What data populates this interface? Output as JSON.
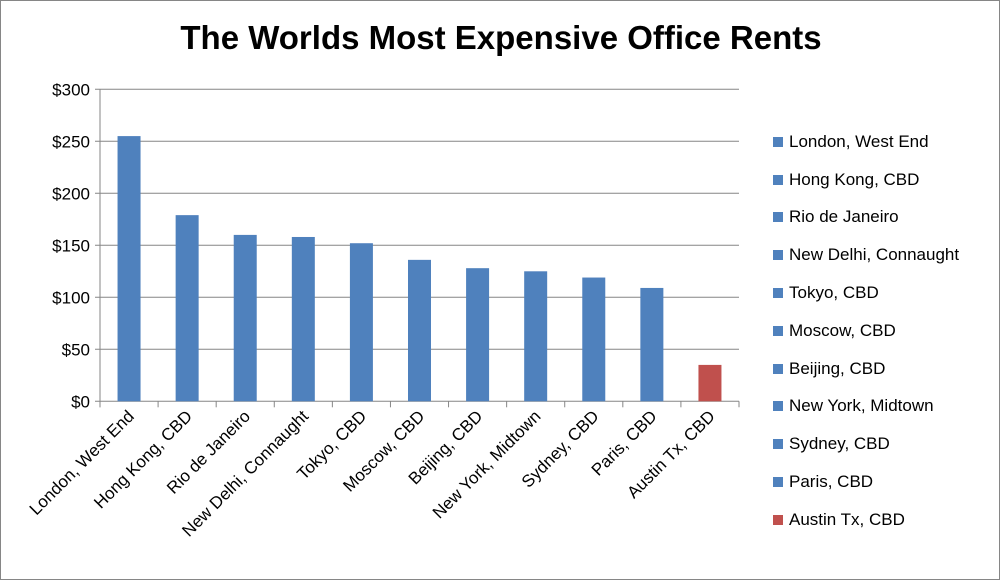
{
  "chart_data": {
    "type": "bar",
    "title": "The Worlds Most Expensive Office Rents",
    "xlabel": "",
    "ylabel": "",
    "ylim": [
      0,
      300
    ],
    "yticks": [
      0,
      50,
      100,
      150,
      200,
      250,
      300
    ],
    "ytick_labels": [
      "$0",
      "$50",
      "$100",
      "$150",
      "$200",
      "$250",
      "$300"
    ],
    "grid": true,
    "legend_position": "right",
    "categories": [
      "London, West End",
      "Hong Kong, CBD",
      "Rio de Janeiro",
      "New Delhi, Connaught",
      "Tokyo, CBD",
      "Moscow, CBD",
      "Beijing, CBD",
      "New York, Midtown",
      "Sydney, CBD",
      "Paris, CBD",
      "Austin Tx, CBD"
    ],
    "values": [
      255,
      179,
      160,
      158,
      152,
      136,
      128,
      125,
      119,
      109,
      35
    ],
    "colors": [
      "#4f81bd",
      "#4f81bd",
      "#4f81bd",
      "#4f81bd",
      "#4f81bd",
      "#4f81bd",
      "#4f81bd",
      "#4f81bd",
      "#4f81bd",
      "#4f81bd",
      "#c0504d"
    ]
  }
}
